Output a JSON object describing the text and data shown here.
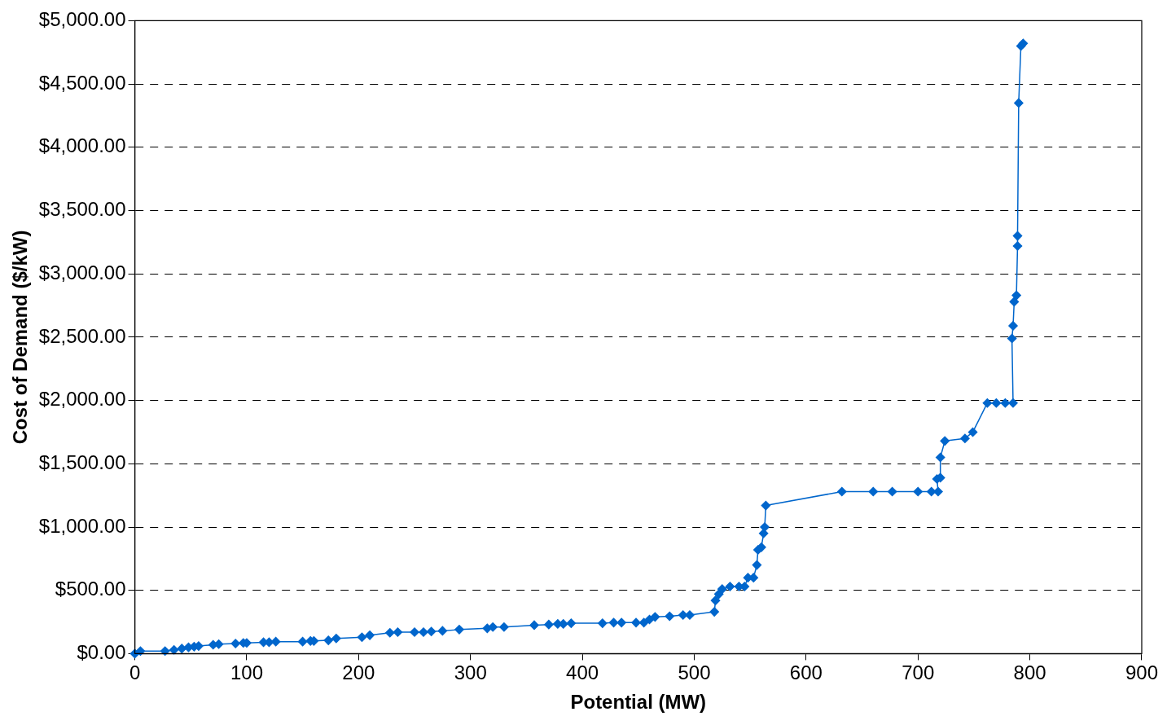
{
  "chart_data": {
    "type": "line",
    "xlabel": "Potential (MW)",
    "ylabel": "Cost of Demand ($/kW)",
    "xlim": [
      0,
      900
    ],
    "xticks": [
      0,
      100,
      200,
      300,
      400,
      500,
      600,
      700,
      800,
      900
    ],
    "ylim": [
      0,
      5000
    ],
    "yticks": [
      {
        "value": 0,
        "label": "$0.00"
      },
      {
        "value": 500,
        "label": "$500.00"
      },
      {
        "value": 1000,
        "label": "$1,000.00"
      },
      {
        "value": 1500,
        "label": "$1,500.00"
      },
      {
        "value": 2000,
        "label": "$2,000.00"
      },
      {
        "value": 2500,
        "label": "$2,500.00"
      },
      {
        "value": 3000,
        "label": "$3,000.00"
      },
      {
        "value": 3500,
        "label": "$3,500.00"
      },
      {
        "value": 4000,
        "label": "$4,000.00"
      },
      {
        "value": 4500,
        "label": "$4,500.00"
      },
      {
        "value": 5000,
        "label": "$5,000.00"
      }
    ],
    "grid": "y",
    "marker": "diamond",
    "line_style": "solid",
    "series": [
      {
        "color": "#0066cc",
        "x": [
          0,
          5,
          27,
          35,
          42,
          48,
          53,
          57,
          70,
          75,
          90,
          97,
          100,
          115,
          120,
          126,
          150,
          157,
          160,
          173,
          180,
          203,
          210,
          228,
          235,
          250,
          258,
          265,
          275,
          290,
          315,
          320,
          330,
          357,
          370,
          378,
          383,
          390,
          418,
          428,
          435,
          448,
          455,
          460,
          465,
          478,
          490,
          496,
          518,
          519,
          522,
          525,
          532,
          540,
          545,
          548,
          553,
          556,
          557,
          560,
          562,
          563,
          564,
          632,
          660,
          677,
          700,
          712,
          718,
          717,
          720,
          720,
          724,
          742,
          749,
          762,
          770,
          778,
          785,
          784,
          785,
          786,
          788,
          789,
          789,
          790,
          792,
          794
        ],
        "values": [
          0,
          20,
          20,
          30,
          40,
          50,
          55,
          60,
          70,
          75,
          80,
          85,
          85,
          90,
          90,
          95,
          95,
          100,
          100,
          105,
          120,
          130,
          145,
          165,
          170,
          170,
          170,
          175,
          180,
          190,
          200,
          210,
          210,
          225,
          230,
          235,
          235,
          240,
          240,
          245,
          245,
          245,
          245,
          270,
          290,
          295,
          305,
          305,
          330,
          420,
          470,
          510,
          530,
          530,
          530,
          600,
          600,
          700,
          820,
          840,
          950,
          1000,
          1170,
          1280,
          1280,
          1280,
          1280,
          1280,
          1280,
          1380,
          1390,
          1550,
          1680,
          1700,
          1750,
          1980,
          1980,
          1980,
          1980,
          2490,
          2590,
          2780,
          2830,
          3220,
          3300,
          4350,
          4800,
          4820
        ]
      }
    ]
  }
}
